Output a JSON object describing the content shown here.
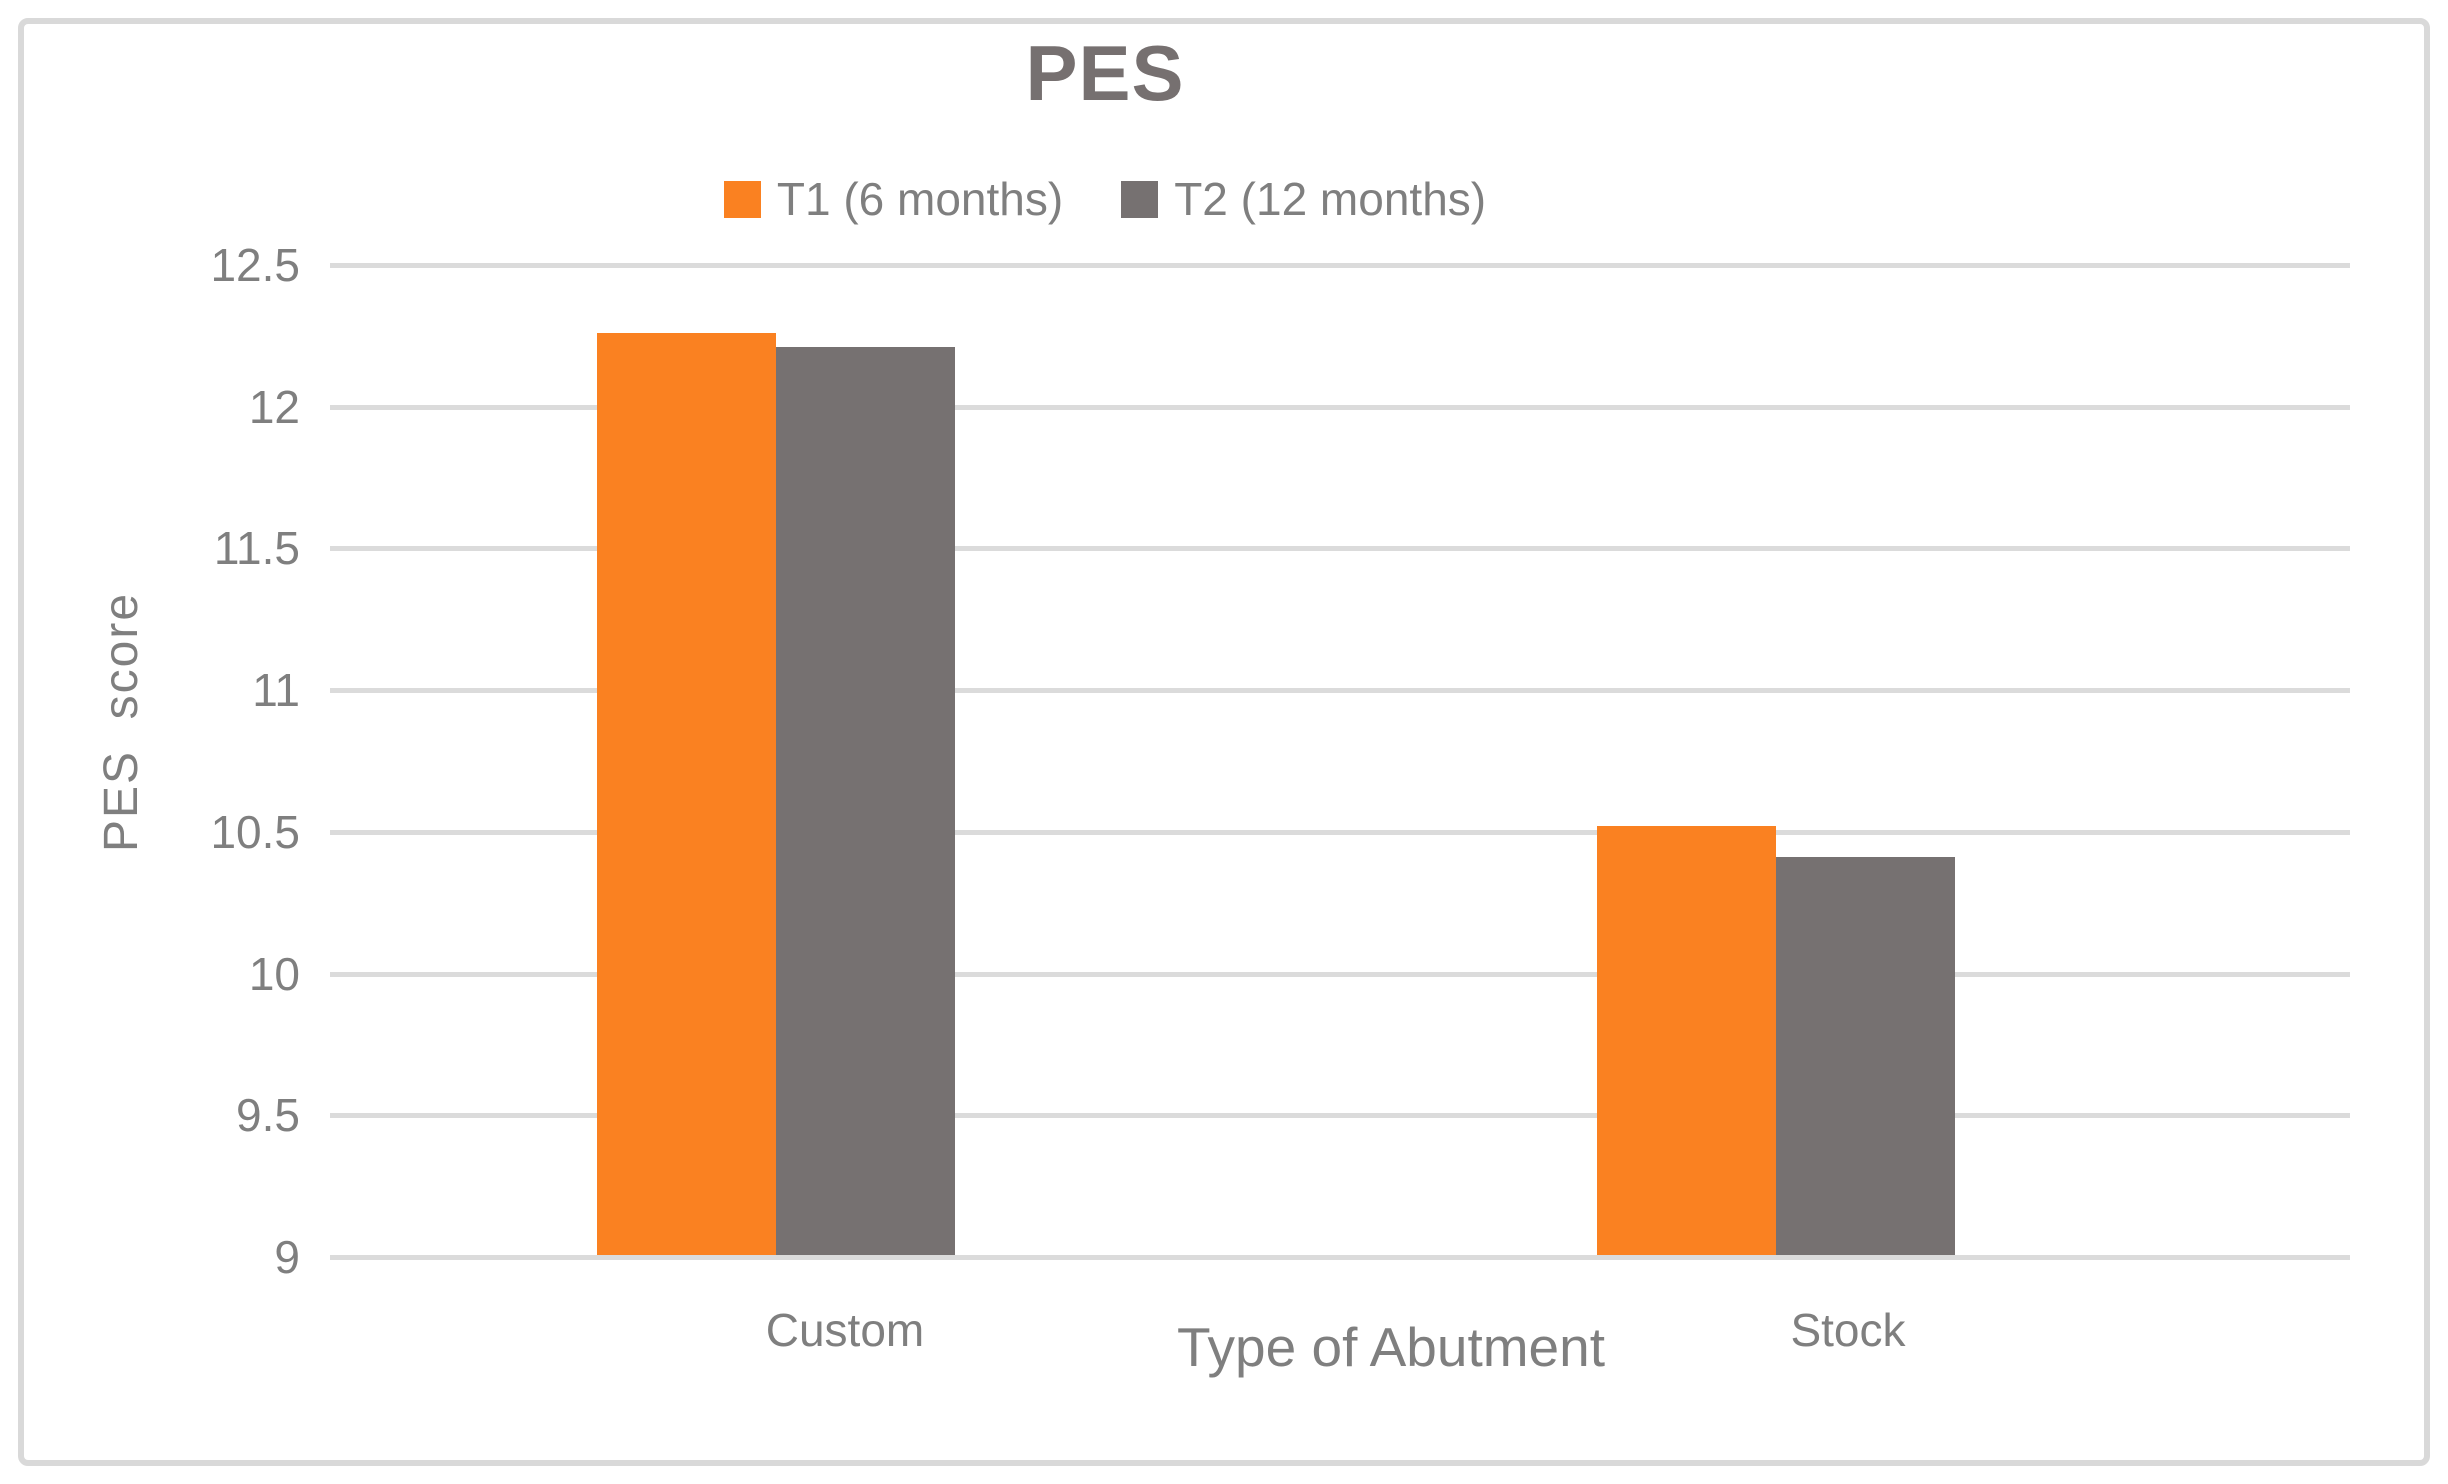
{
  "chart_data": {
    "type": "bar",
    "title": "PES",
    "xlabel": "Type of Abutment",
    "ylabel": "PES  score",
    "categories": [
      "Custom",
      "Stock"
    ],
    "series": [
      {
        "name": "T1 (6 months)",
        "color": "#FA8121",
        "values": [
          12.26,
          10.52
        ]
      },
      {
        "name": "T2 (12 months)",
        "color": "#767171",
        "values": [
          12.21,
          10.41
        ]
      }
    ],
    "ylim": [
      9,
      12.5
    ],
    "ytick_step": 0.5,
    "yticks": [
      "12.5",
      "12",
      "11.5",
      "11",
      "10.5",
      "10",
      "9.5",
      "9"
    ],
    "grid": true,
    "legend_position": "top-center"
  },
  "colors": {
    "background": "#FFFFFF",
    "frame_border": "#D9D9D9",
    "gridline": "#DBDBDB",
    "axis_text": "#7F7F7F",
    "title_text": "#767070",
    "series_t1": "#FA8121",
    "series_t2": "#767171"
  }
}
